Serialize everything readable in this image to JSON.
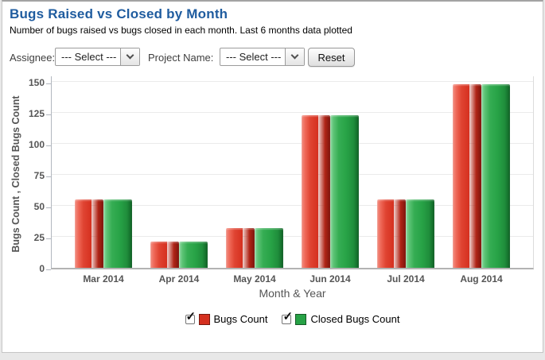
{
  "header": {
    "title": "Bugs Raised vs Closed by Month",
    "subtitle": "Number of bugs raised vs bugs closed in each month. Last 6 months data plotted"
  },
  "controls": {
    "assignee_label": "Assignee:",
    "assignee_value": "--- Select ---",
    "project_label": "Project Name:",
    "project_value": "--- Select ---",
    "reset_label": "Reset"
  },
  "colors": {
    "title_blue": "#1f5c9f",
    "bar_red": "#d5301f",
    "bar_green": "#27a246",
    "axis_text": "#555555",
    "gridline": "#ebebeb"
  },
  "chart_data": {
    "type": "bar",
    "title": "Bugs Raised vs Closed by Month",
    "categories": [
      "Mar 2014",
      "Apr 2014",
      "May 2014",
      "Jun 2014",
      "Jul 2014",
      "Aug 2014"
    ],
    "series": [
      {
        "name": "Bugs Count",
        "color": "#d5301f",
        "checked": true,
        "values": [
          55,
          21,
          32,
          123,
          55,
          148
        ]
      },
      {
        "name": "Closed Bugs Count",
        "color": "#27a246",
        "checked": true,
        "values": [
          55,
          21,
          32,
          123,
          55,
          148
        ]
      }
    ],
    "xlabel": "Month & Year",
    "ylabel": "Bugs Count , Closed Bugs Count",
    "yticks": [
      0,
      25,
      50,
      75,
      100,
      125,
      150
    ],
    "ylim": [
      0,
      156
    ],
    "grid": true,
    "legend_position": "bottom",
    "legend_checkbox_glyph": "✓"
  }
}
